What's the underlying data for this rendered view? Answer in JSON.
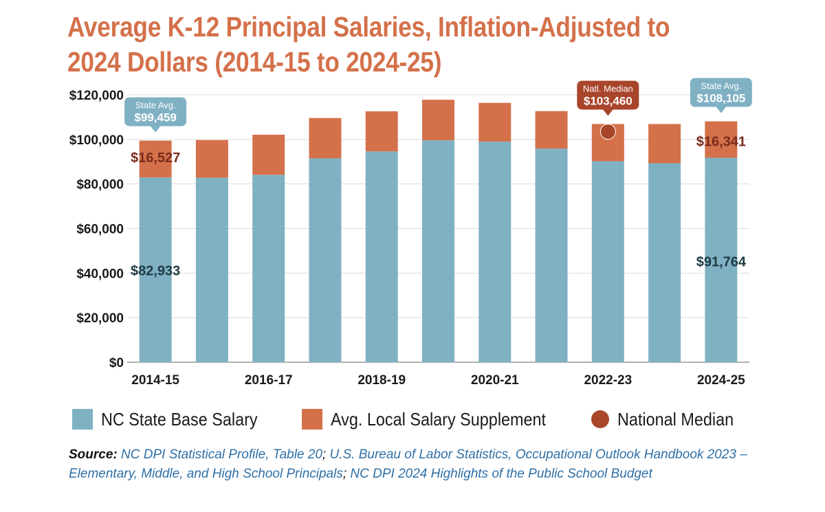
{
  "title_line1": "Average K-12 Principal Salaries, Inflation-Adjusted to",
  "title_line2": "2024 Dollars (2014-15 to 2024-25)",
  "chart_data": {
    "type": "bar",
    "stacked": true,
    "categories": [
      "2014-15",
      "2015-16",
      "2016-17",
      "2017-18",
      "2018-19",
      "2019-20",
      "2020-21",
      "2021-22",
      "2022-23",
      "2023-24",
      "2024-25"
    ],
    "x_tick_labels_shown": [
      "2014-15",
      "2016-17",
      "2018-19",
      "2020-21",
      "2022-23",
      "2024-25"
    ],
    "series": [
      {
        "name": "NC State Base Salary",
        "color": "#7fb1c3",
        "values": [
          82933,
          82800,
          84100,
          91500,
          94600,
          99600,
          99000,
          95900,
          90200,
          89300,
          91764
        ]
      },
      {
        "name": "Avg. Local Salary Supplement",
        "color": "#d4714a",
        "values": [
          16527,
          16900,
          18000,
          18100,
          18000,
          18200,
          17400,
          16800,
          16700,
          17600,
          16341
        ]
      }
    ],
    "national_median": {
      "name": "National Median",
      "category": "2022-23",
      "value": 103460,
      "color": "#a8452a"
    },
    "y_ticks": [
      "$0",
      "$20,000",
      "$40,000",
      "$60,000",
      "$80,000",
      "$100,000",
      "$120,000"
    ],
    "ylim": [
      0,
      120000
    ],
    "data_labels": {
      "first_base": "$82,933",
      "first_supplement": "$16,527",
      "last_base": "$91,764",
      "last_supplement": "$16,341"
    },
    "callouts": [
      {
        "category": "2014-15",
        "line1": "State Avg.",
        "line2": "$99,459",
        "color": "#7fb1c3"
      },
      {
        "category": "2022-23",
        "line1": "Natl. Median",
        "line2": "$103,460",
        "color": "#a8452a"
      },
      {
        "category": "2024-25",
        "line1": "State Avg.",
        "line2": "$108,105",
        "color": "#7fb1c3"
      }
    ],
    "grid": true,
    "legend_position": "bottom"
  },
  "legend": {
    "base": "NC State Base Salary",
    "supplement": "Avg. Local Salary Supplement",
    "median": "National Median"
  },
  "source": {
    "label": "Source:",
    "ref1": "NC DPI Statistical Profile, Table 20",
    "ref2": "U.S. Bureau of Labor Statistics, Occupational Outlook Handbook 2023 – Elementary, Middle, and High School Principals",
    "ref3": "NC DPI 2024 Highlights of the Public School Budget",
    "separator": ";"
  },
  "colors": {
    "base": "#7fb1c3",
    "supplement": "#d4714a",
    "median": "#a8452a",
    "label_base": "#1f3b45",
    "label_supplement": "#7a2b1d",
    "title": "#d4714a",
    "source_link": "#2e6fa6"
  }
}
